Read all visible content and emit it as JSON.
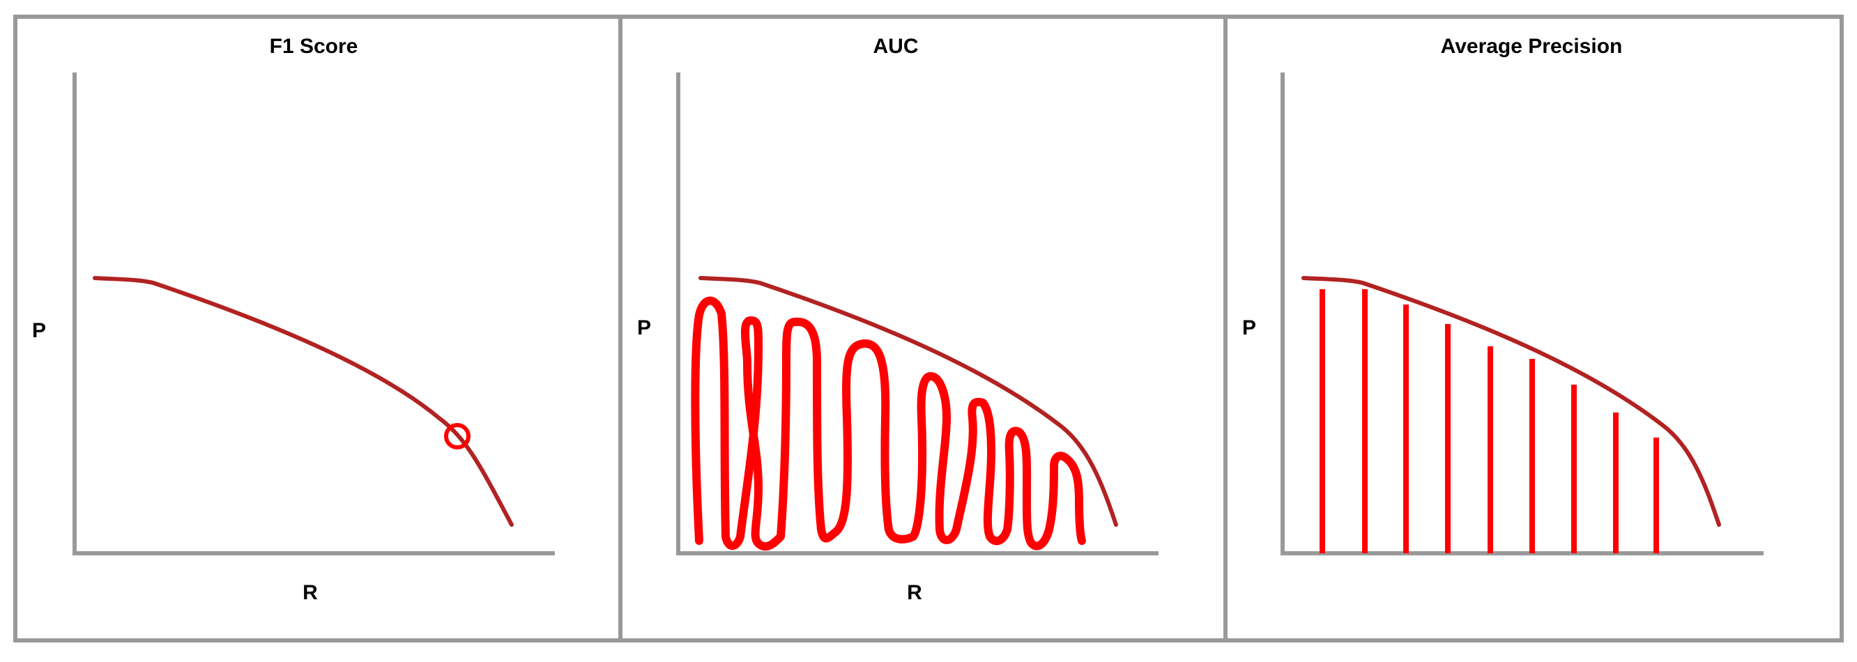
{
  "colors": {
    "frame": "#999999",
    "axis": "#999999",
    "curve": "#b22222",
    "highlight": "#ff0000",
    "background": "#ffffff"
  },
  "panels": [
    {
      "id": "f1",
      "title": "F1 Score",
      "ylabel": "P",
      "xlabel": "R",
      "marker": "circle-on-curve"
    },
    {
      "id": "auc",
      "title": "AUC",
      "ylabel": "P",
      "xlabel": "R",
      "marker": "scribble-fill-under-curve"
    },
    {
      "id": "ap",
      "title": "Average Precision",
      "ylabel": "P",
      "xlabel": "",
      "marker": "vertical-bars-under-curve"
    }
  ]
}
